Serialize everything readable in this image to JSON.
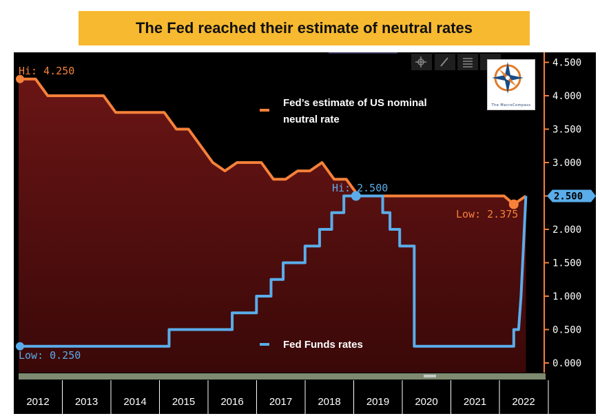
{
  "banner_title": "The Fed reached their estimate of neutral rates",
  "logo": {
    "label": "The MacroCompass"
  },
  "colors": {
    "orange": "#f5813a",
    "blue": "#5aadea",
    "area": "#6a1515",
    "banner": "#f7b930"
  },
  "annotations": {
    "neutral_hi": "Hi: 4.250",
    "neutral_low": "Low: 2.375",
    "ffr_hi": "Hi: 2.500",
    "ffr_low": "Low: 0.250",
    "last_value": "2.500"
  },
  "chart_data": {
    "type": "line",
    "title": "The Fed reached their estimate of neutral rates",
    "xlabel": "",
    "ylabel": "",
    "ylim": [
      0,
      4.75
    ],
    "xlim": [
      2012.0,
      2022.6
    ],
    "yticks": [
      "0.000",
      "0.500",
      "1.000",
      "1.500",
      "2.000",
      "2.500",
      "3.000",
      "3.500",
      "4.000",
      "4.500"
    ],
    "categories": [
      "2012",
      "2013",
      "2014",
      "2015",
      "2016",
      "2017",
      "2018",
      "2019",
      "2020",
      "2021",
      "2022"
    ],
    "series": [
      {
        "name": "Fed’s estimate of US nominal neutral rate",
        "color": "#f5813a",
        "fill": true,
        "x": [
          2012.0,
          2012.35,
          2012.6,
          2013.0,
          2013.5,
          2013.75,
          2014.0,
          2014.25,
          2014.5,
          2014.75,
          2015.0,
          2015.25,
          2015.5,
          2015.75,
          2016.0,
          2016.25,
          2016.5,
          2016.75,
          2017.0,
          2017.25,
          2017.5,
          2017.75,
          2018.0,
          2018.25,
          2018.5,
          2018.75,
          2019.0,
          2019.25,
          2019.5,
          2019.75,
          2020.0,
          2020.5,
          2021.0,
          2021.5,
          2021.75,
          2022.0,
          2022.2,
          2022.45
        ],
        "values": [
          4.25,
          4.25,
          4.0,
          4.0,
          4.0,
          4.0,
          3.75,
          3.75,
          3.75,
          3.75,
          3.75,
          3.5,
          3.5,
          3.25,
          3.0,
          2.875,
          3.0,
          3.0,
          3.0,
          2.75,
          2.75,
          2.875,
          2.875,
          3.0,
          2.75,
          2.75,
          2.5,
          2.5,
          2.5,
          2.5,
          2.5,
          2.5,
          2.5,
          2.5,
          2.5,
          2.5,
          2.375,
          2.5
        ]
      },
      {
        "name": "Fed Funds rates",
        "color": "#5aadea",
        "fill": false,
        "x": [
          2012.0,
          2015.0,
          2015.1,
          2015.1,
          2016.0,
          2016.4,
          2016.4,
          2016.9,
          2016.9,
          2017.2,
          2017.2,
          2017.45,
          2017.45,
          2017.9,
          2017.9,
          2018.2,
          2018.2,
          2018.45,
          2018.45,
          2018.7,
          2018.7,
          2018.95,
          2018.95,
          2019.5,
          2019.5,
          2019.65,
          2019.65,
          2019.85,
          2019.85,
          2020.15,
          2020.15,
          2020.25,
          2020.25,
          2022.0,
          2022.2,
          2022.2,
          2022.3,
          2022.35,
          2022.45
        ],
        "values": [
          0.25,
          0.25,
          0.25,
          0.5,
          0.5,
          0.5,
          0.75,
          0.75,
          1.0,
          1.0,
          1.25,
          1.25,
          1.5,
          1.5,
          1.75,
          1.75,
          2.0,
          2.0,
          2.25,
          2.25,
          2.5,
          2.5,
          2.5,
          2.5,
          2.25,
          2.25,
          2.0,
          2.0,
          1.75,
          1.75,
          0.25,
          0.25,
          0.25,
          0.25,
          0.25,
          0.5,
          0.5,
          1.0,
          2.5
        ]
      }
    ]
  }
}
